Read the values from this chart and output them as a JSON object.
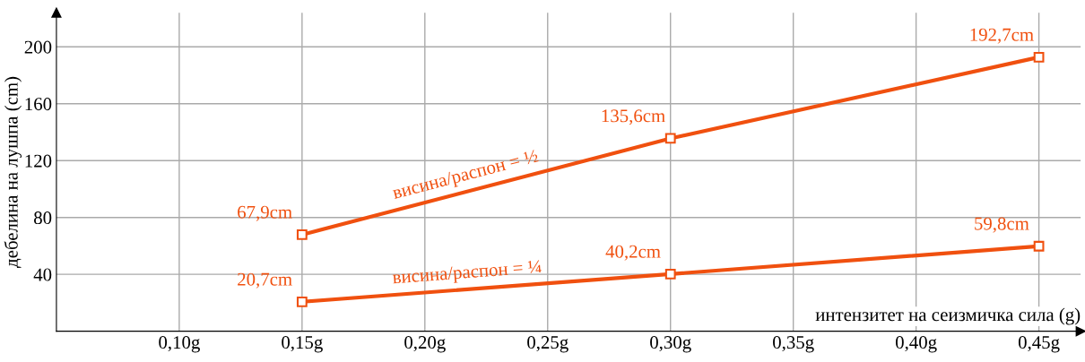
{
  "chart_data": {
    "type": "line",
    "xlabel": "интензитет на сеизмичка сила (g)",
    "ylabel": "дебелина на лушпа (cm)",
    "x": [
      0.15,
      0.3,
      0.45
    ],
    "series": [
      {
        "name": "висина/распон = ½",
        "color": "#f0500f",
        "values": [
          67.9,
          135.6,
          192.7
        ],
        "value_labels": [
          "67,9cm",
          "135,6cm",
          "192,7cm"
        ]
      },
      {
        "name": "висина/распон = ¼",
        "color": "#f0500f",
        "values": [
          20.7,
          40.2,
          59.8
        ],
        "value_labels": [
          "20,7cm",
          "40,2cm",
          "59,8cm"
        ]
      }
    ],
    "xlim": [
      0.05,
      0.467
    ],
    "ylim": [
      0,
      224
    ],
    "xticks": [
      {
        "value": 0.1,
        "label": "0,10g"
      },
      {
        "value": 0.15,
        "label": "0,15g"
      },
      {
        "value": 0.2,
        "label": "0,20g"
      },
      {
        "value": 0.25,
        "label": "0,25g"
      },
      {
        "value": 0.3,
        "label": "0,30g"
      },
      {
        "value": 0.35,
        "label": "0,35g"
      },
      {
        "value": 0.4,
        "label": "0,40g"
      },
      {
        "value": 0.45,
        "label": "0,45g"
      }
    ],
    "yticks": [
      40,
      80,
      120,
      160,
      200
    ],
    "grid": true,
    "legend": false,
    "marker": "square",
    "line_style": "solid"
  }
}
